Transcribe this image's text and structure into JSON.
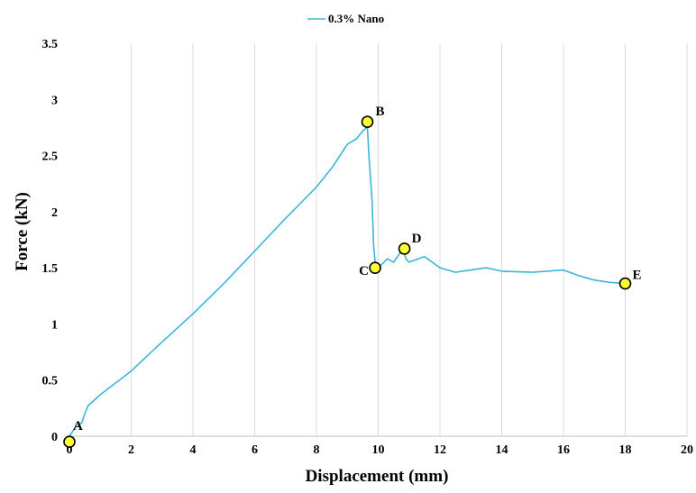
{
  "chart_data": {
    "type": "line",
    "title": "",
    "xlabel": "Displacement (mm)",
    "ylabel": "Force (kN)",
    "xlim": [
      0,
      20
    ],
    "ylim": [
      0,
      3.5
    ],
    "xticks": [
      "0",
      "2",
      "4",
      "6",
      "8",
      "10",
      "12",
      "14",
      "16",
      "18",
      "20"
    ],
    "yticks": [
      "0",
      "0.5",
      "1",
      "1.5",
      "2",
      "2.5",
      "3",
      "3.5"
    ],
    "grid": "vertical",
    "legend_position": "top-center",
    "series": [
      {
        "name": "0.3% Nano",
        "color": "#3db5d8",
        "x": [
          0,
          0.2,
          0.4,
          0.5,
          0.6,
          0.8,
          1,
          2,
          3,
          4,
          5,
          6,
          7,
          8,
          8.5,
          9,
          9.3,
          9.5,
          9.65,
          9.7,
          9.8,
          9.85,
          9.9,
          10,
          10.3,
          10.5,
          10.8,
          10.9,
          11,
          11.5,
          12,
          12.5,
          13,
          13.5,
          14,
          15,
          16,
          16.5,
          17,
          17.5,
          18
        ],
        "y": [
          0,
          0.08,
          0.12,
          0.2,
          0.27,
          0.32,
          0.37,
          0.58,
          0.84,
          1.09,
          1.36,
          1.65,
          1.94,
          2.22,
          2.39,
          2.6,
          2.65,
          2.72,
          2.75,
          2.5,
          2.1,
          1.7,
          1.55,
          1.5,
          1.58,
          1.55,
          1.67,
          1.58,
          1.55,
          1.6,
          1.5,
          1.46,
          1.48,
          1.5,
          1.47,
          1.46,
          1.48,
          1.43,
          1.39,
          1.37,
          1.36
        ]
      }
    ],
    "points": [
      {
        "label": "A",
        "x": 0,
        "y": -0.05
      },
      {
        "label": "B",
        "x": 9.65,
        "y": 2.8
      },
      {
        "label": "C",
        "x": 9.9,
        "y": 1.5
      },
      {
        "label": "D",
        "x": 10.85,
        "y": 1.67
      },
      {
        "label": "E",
        "x": 18,
        "y": 1.36
      }
    ],
    "point_color": "#ffff33"
  }
}
